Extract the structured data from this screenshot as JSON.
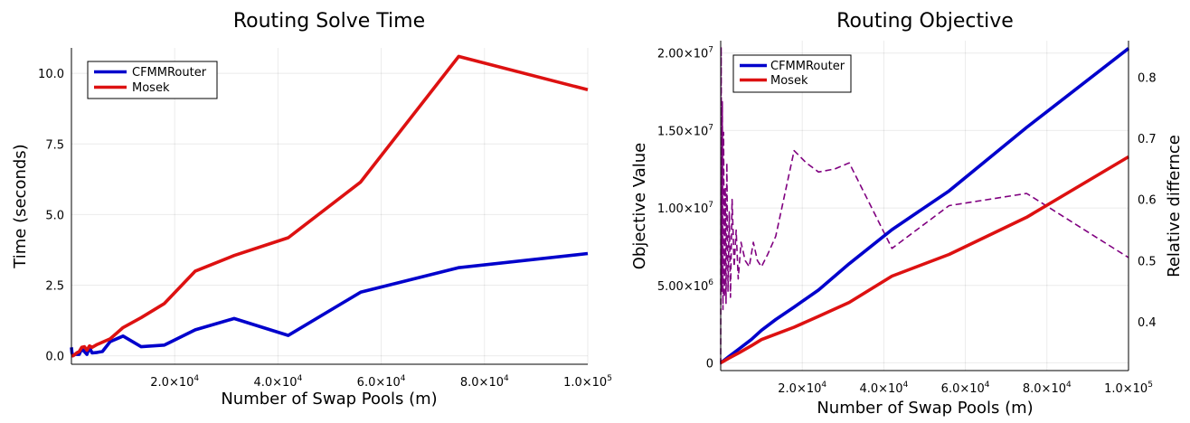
{
  "chart_data": [
    {
      "type": "line",
      "title": "Routing Solve Time",
      "xlabel": "Number of Swap Pools (m)",
      "ylabel": "Time (seconds)",
      "xlim": [
        0,
        100000
      ],
      "ylim": [
        -0.3,
        10.9
      ],
      "xticks": [
        {
          "v": 20000,
          "m": "2.0",
          "e": "4"
        },
        {
          "v": 40000,
          "m": "4.0",
          "e": "4"
        },
        {
          "v": 60000,
          "m": "6.0",
          "e": "4"
        },
        {
          "v": 80000,
          "m": "8.0",
          "e": "4"
        },
        {
          "v": 100000,
          "m": "1.0",
          "e": "5"
        }
      ],
      "yticks": [
        {
          "v": 0,
          "label": "0.0"
        },
        {
          "v": 2.5,
          "label": "2.5"
        },
        {
          "v": 5,
          "label": "5.0"
        },
        {
          "v": 7.5,
          "label": "7.5"
        },
        {
          "v": 10,
          "label": "10.0"
        }
      ],
      "legend_position": "top-left",
      "series": [
        {
          "name": "CFMMRouter",
          "color": "#0000CC",
          "x": [
            0,
            100,
            300,
            700,
            1000,
            1500,
            2000,
            2500,
            3000,
            3500,
            4000,
            5000,
            6000,
            7500,
            10000,
            13500,
            18000,
            24000,
            31500,
            42000,
            56000,
            75000,
            100000
          ],
          "y": [
            0.3,
            0.1,
            0.0,
            0.05,
            0.05,
            0.05,
            0.25,
            0.15,
            0.05,
            0.3,
            0.1,
            0.12,
            0.15,
            0.5,
            0.7,
            0.32,
            0.38,
            0.92,
            1.32,
            0.72,
            2.25,
            3.12,
            3.62
          ]
        },
        {
          "name": "Mosek",
          "color": "#DD1111",
          "x": [
            0,
            300,
            700,
            1000,
            1500,
            2000,
            2500,
            3000,
            3500,
            4000,
            5000,
            7500,
            10000,
            13500,
            18000,
            24000,
            31500,
            42000,
            56000,
            75000,
            100000
          ],
          "y": [
            0.0,
            0.0,
            0.05,
            0.1,
            0.15,
            0.3,
            0.32,
            0.2,
            0.35,
            0.3,
            0.4,
            0.6,
            1.0,
            1.35,
            1.85,
            3.0,
            3.55,
            4.18,
            6.15,
            10.6,
            9.42
          ]
        }
      ]
    },
    {
      "type": "line",
      "title": "Routing Objective",
      "xlabel": "Number of Swap Pools (m)",
      "ylabel": "Objective Value",
      "y2label": "Relative differnce",
      "xlim": [
        0,
        100000
      ],
      "ylim": [
        -500000,
        20800000
      ],
      "y2lim": [
        0.32,
        0.86
      ],
      "xticks": [
        {
          "v": 20000,
          "m": "2.0",
          "e": "4"
        },
        {
          "v": 40000,
          "m": "4.0",
          "e": "4"
        },
        {
          "v": 60000,
          "m": "6.0",
          "e": "4"
        },
        {
          "v": 80000,
          "m": "8.0",
          "e": "4"
        },
        {
          "v": 100000,
          "m": "1.0",
          "e": "5"
        }
      ],
      "yticks": [
        {
          "v": 0,
          "m": "0",
          "e": ""
        },
        {
          "v": 5000000,
          "m": "5.00",
          "e": "6"
        },
        {
          "v": 10000000,
          "m": "1.00",
          "e": "7"
        },
        {
          "v": 15000000,
          "m": "1.50",
          "e": "7"
        },
        {
          "v": 20000000,
          "m": "2.00",
          "e": "7"
        }
      ],
      "y2ticks": [
        {
          "v": 0.4,
          "label": "0.4"
        },
        {
          "v": 0.5,
          "label": "0.5"
        },
        {
          "v": 0.6,
          "label": "0.6"
        },
        {
          "v": 0.7,
          "label": "0.7"
        },
        {
          "v": 0.8,
          "label": "0.8"
        }
      ],
      "legend_position": "top-left",
      "series": [
        {
          "name": "CFMMRouter",
          "color": "#0000CC",
          "axis": "left",
          "x": [
            0,
            1000,
            2000,
            4500,
            7500,
            10000,
            13500,
            18000,
            24000,
            31500,
            42000,
            56000,
            75000,
            100000
          ],
          "y": [
            0,
            200000,
            400000,
            900000,
            1500000,
            2100000,
            2800000,
            3600000,
            4700000,
            6400000,
            8600000,
            11100000,
            15200000,
            20300000
          ]
        },
        {
          "name": "Mosek",
          "color": "#DD1111",
          "axis": "left",
          "x": [
            0,
            1000,
            2000,
            4500,
            7500,
            10000,
            13500,
            18000,
            24000,
            31500,
            42000,
            56000,
            75000,
            100000
          ],
          "y": [
            0,
            150000,
            300000,
            650000,
            1100000,
            1500000,
            1850000,
            2300000,
            3000000,
            3900000,
            5600000,
            7000000,
            9400000,
            13300000
          ]
        },
        {
          "name": "Relative differnce",
          "color": "#800080",
          "axis": "right",
          "style": "dashed",
          "show_in_legend": false,
          "x": [
            0,
            120,
            260,
            400,
            550,
            700,
            900,
            1100,
            1300,
            1500,
            1800,
            2100,
            2400,
            2800,
            3300,
            3800,
            4300,
            5000,
            6000,
            7000,
            8000,
            9000,
            10000,
            11500,
            13500,
            18000,
            21000,
            24000,
            28000,
            31500,
            36000,
            42000,
            56000,
            75000,
            100000
          ],
          "y": [
            0.33,
            0.85,
            0.45,
            0.76,
            0.42,
            0.71,
            0.44,
            0.62,
            0.43,
            0.66,
            0.45,
            0.58,
            0.44,
            0.6,
            0.49,
            0.55,
            0.47,
            0.53,
            0.5,
            0.49,
            0.53,
            0.5,
            0.49,
            0.51,
            0.54,
            0.68,
            0.66,
            0.645,
            0.65,
            0.66,
            0.6,
            0.52,
            0.59,
            0.61,
            0.505
          ]
        }
      ]
    }
  ]
}
